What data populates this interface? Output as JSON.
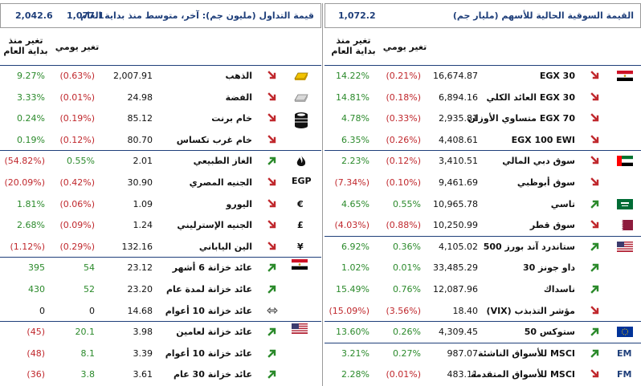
{
  "right": {
    "header_title": "القيمة السوقية الحالية للأسهم (مليار جم)",
    "header_value": "1,072.2",
    "col_daily": "تغير يومي",
    "col_ytd_line1": "تغير منذ",
    "col_ytd_line2": "بداية العام",
    "rows": [
      {
        "name": "EGX 30",
        "value": "16,674.87",
        "daily": "(0.21%)",
        "ytd": "14.22%",
        "d": "neg",
        "y": "pos",
        "dir": "down"
      },
      {
        "name": "EGX 30 العائد الكلي",
        "value": "6,894.16",
        "daily": "(0.18%)",
        "ytd": "14.81%",
        "d": "neg",
        "y": "pos",
        "dir": "down"
      },
      {
        "name": "EGX 70 متساوي الأوزان",
        "value": "2,935.81",
        "daily": "(0.33%)",
        "ytd": "4.78%",
        "d": "neg",
        "y": "pos",
        "dir": "down"
      },
      {
        "name": "EGX 100 EWI",
        "value": "4,408.61",
        "daily": "(0.26%)",
        "ytd": "6.35%",
        "d": "neg",
        "y": "pos",
        "dir": "down"
      },
      {
        "name": "سوق دبي المالي",
        "value": "3,410.51",
        "daily": "(0.12%)",
        "ytd": "2.23%",
        "d": "neg",
        "y": "pos",
        "dir": "down"
      },
      {
        "name": "سوق أبوظبي",
        "value": "9,461.69",
        "daily": "(0.10%)",
        "ytd": "(7.34%)",
        "d": "neg",
        "y": "neg",
        "dir": "down"
      },
      {
        "name": "تاسي",
        "value": "10,965.78",
        "daily": "0.55%",
        "ytd": "4.65%",
        "d": "pos",
        "y": "pos",
        "dir": "up"
      },
      {
        "name": "سوق قطر",
        "value": "10,250.99",
        "daily": "(0.88%)",
        "ytd": "(4.03%)",
        "d": "neg",
        "y": "neg",
        "dir": "down"
      },
      {
        "name": "ستاندرد آند بورز 500",
        "value": "4,105.02",
        "daily": "0.36%",
        "ytd": "6.92%",
        "d": "pos",
        "y": "pos",
        "dir": "up"
      },
      {
        "name": "داو جونز 30",
        "value": "33,485.29",
        "daily": "0.01%",
        "ytd": "1.02%",
        "d": "pos",
        "y": "pos",
        "dir": "up"
      },
      {
        "name": "ناسداك",
        "value": "12,087.96",
        "daily": "0.76%",
        "ytd": "15.49%",
        "d": "pos",
        "y": "pos",
        "dir": "up"
      },
      {
        "name": "مؤشر التذبذب (VIX)",
        "value": "18.40",
        "daily": "(3.56%)",
        "ytd": "(15.09%)",
        "d": "neg",
        "y": "neg",
        "dir": "down"
      },
      {
        "name": "ستوكس 50",
        "value": "4,309.45",
        "daily": "0.26%",
        "ytd": "13.60%",
        "d": "pos",
        "y": "pos",
        "dir": "up"
      },
      {
        "name": "MSCI للأسواق الناشئة",
        "value": "987.07",
        "daily": "0.27%",
        "ytd": "3.21%",
        "d": "pos",
        "y": "pos",
        "dir": "up"
      },
      {
        "name": "MSCI للأسواق المتقدمة",
        "value": "483.11",
        "daily": "(0.01%)",
        "ytd": "2.28%",
        "d": "neg",
        "y": "pos",
        "dir": "down"
      }
    ],
    "labels": {
      "em": "EM",
      "fm": "FM"
    }
  },
  "left": {
    "header_title": "قيمة التداول (مليون جم): آخر، متوسط منذ بداية العام",
    "header_last": "1,077.1",
    "header_avg": "2,042.6",
    "col_daily": "تغير يومي",
    "col_ytd_line1": "تغير منذ",
    "col_ytd_line2": "بداية العام",
    "rows": [
      {
        "name": "الذهب",
        "value": "2,007.91",
        "daily": "(0.63%)",
        "ytd": "9.27%",
        "d": "neg",
        "y": "pos",
        "dir": "down"
      },
      {
        "name": "الفضة",
        "value": "24.98",
        "daily": "(0.01%)",
        "ytd": "3.33%",
        "d": "neg",
        "y": "pos",
        "dir": "down"
      },
      {
        "name": "خام برنت",
        "value": "85.12",
        "daily": "(0.19%)",
        "ytd": "0.24%",
        "d": "neg",
        "y": "pos",
        "dir": "down"
      },
      {
        "name": "خام غرب تكساس",
        "value": "80.70",
        "daily": "(0.12%)",
        "ytd": "0.19%",
        "d": "neg",
        "y": "pos",
        "dir": "down"
      },
      {
        "name": "الغاز الطبيعي",
        "value": "2.01",
        "daily": "0.55%",
        "ytd": "(54.82%)",
        "d": "pos",
        "y": "neg",
        "dir": "up"
      },
      {
        "name": "الجنيه المصري",
        "value": "30.90",
        "daily": "(0.42%)",
        "ytd": "(20.09%)",
        "d": "neg",
        "y": "neg",
        "dir": "down"
      },
      {
        "name": "اليورو",
        "value": "1.09",
        "daily": "(0.06%)",
        "ytd": "1.81%",
        "d": "neg",
        "y": "pos",
        "dir": "down"
      },
      {
        "name": "الجنيه الإسترليني",
        "value": "1.24",
        "daily": "(0.09%)",
        "ytd": "2.68%",
        "d": "neg",
        "y": "pos",
        "dir": "down"
      },
      {
        "name": "الين الياباني",
        "value": "132.16",
        "daily": "(0.29%)",
        "ytd": "(1.12%)",
        "d": "neg",
        "y": "neg",
        "dir": "down"
      },
      {
        "name": "عائد خزانة 6 أشهر",
        "value": "23.12",
        "daily": "54",
        "ytd": "395",
        "d": "pos",
        "y": "pos",
        "dir": "up"
      },
      {
        "name": "عائد خزانة لمدة عام",
        "value": "23.20",
        "daily": "52",
        "ytd": "430",
        "d": "pos",
        "y": "pos",
        "dir": "up"
      },
      {
        "name": "عائد خزانة 10 أعوام",
        "value": "14.68",
        "daily": "0",
        "ytd": "0",
        "d": "zero",
        "y": "zero",
        "dir": "flat"
      },
      {
        "name": "عائد خزانة لعامين",
        "value": "3.98",
        "daily": "20.1",
        "ytd": "(45)",
        "d": "pos",
        "y": "neg",
        "dir": "up"
      },
      {
        "name": "عائد خزانة 10 أعوام",
        "value": "3.39",
        "daily": "8.1",
        "ytd": "(48)",
        "d": "pos",
        "y": "neg",
        "dir": "up"
      },
      {
        "name": "عائد خزانة 30 عام",
        "value": "3.61",
        "daily": "3.8",
        "ytd": "(36)",
        "d": "pos",
        "y": "neg",
        "dir": "up"
      }
    ],
    "labels": {
      "egp": "EGP",
      "eur": "€",
      "gbp": "£",
      "jpy": "¥"
    }
  },
  "colors": {
    "positive": "#2b8a2b",
    "negative": "#c0282d",
    "header_text": "#1f3f7a",
    "arrow_up": "#2b8a2b",
    "arrow_down": "#c0282d"
  },
  "icons": [
    "egypt-flag-icon",
    "uae-flag-icon",
    "saudi-flag-icon",
    "qatar-flag-icon",
    "usa-flag-icon",
    "eu-flag-icon",
    "gold-bar-icon",
    "silver-bar-icon",
    "oil-barrel-icon",
    "gas-flame-icon",
    "euro-icon",
    "pound-icon",
    "yen-icon",
    "flat-arrow-icon"
  ]
}
